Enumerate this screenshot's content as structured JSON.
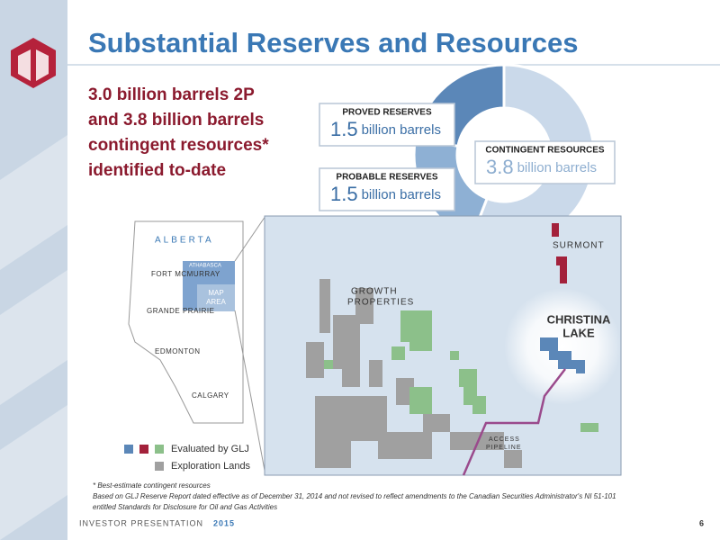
{
  "header": {
    "title": "Substantial Reserves and Resources"
  },
  "summary": [
    "3.0 billion barrels 2P",
    "and 3.8 billion barrels",
    "contingent resources*",
    "identified to-date"
  ],
  "chart_data": {
    "type": "donut",
    "unit": "billion barrels",
    "series": [
      {
        "name": "PROVED RESERVES",
        "color": "#5b87b8",
        "value_color": "#3a6ea5",
        "value": 1.5
      },
      {
        "name": "PROBABLE RESERVES",
        "color": "#8eb0d4",
        "value_color": "#3a6ea5",
        "value": 1.5
      },
      {
        "name": "CONTINGENT RESOURCES",
        "color": "#cad9ea",
        "value_color": "#8eaed0",
        "value": 3.8
      }
    ]
  },
  "map": {
    "province": "ALBERTA",
    "cities": [
      "FORT MCMURRAY",
      "GRANDE PRAIRIE",
      "EDMONTON",
      "CALGARY"
    ],
    "athabasca": "ATHABASCA",
    "map_area": [
      "MAP",
      "AREA"
    ],
    "labels": {
      "surmont": "SURMONT",
      "growth": [
        "GROWTH",
        "PROPERTIES"
      ],
      "christina": [
        "CHRISTINA",
        "LAKE"
      ],
      "pipeline": [
        "ACCESS",
        "PIPELINE"
      ]
    }
  },
  "legend": [
    "Evaluated by GLJ",
    "Exploration Lands"
  ],
  "footnotes": [
    "* Best-estimate contingent resources",
    "Based on GLJ Reserve Report dated effective as of December 31, 2014 and not revised to reflect amendments to the Canadian Securities Administrator's NI 51-101",
    "entitled Standards for Disclosure for Oil and Gas Activities"
  ],
  "footer": {
    "label": "INVESTOR PRESENTATION",
    "year": "2015",
    "page": "6"
  }
}
